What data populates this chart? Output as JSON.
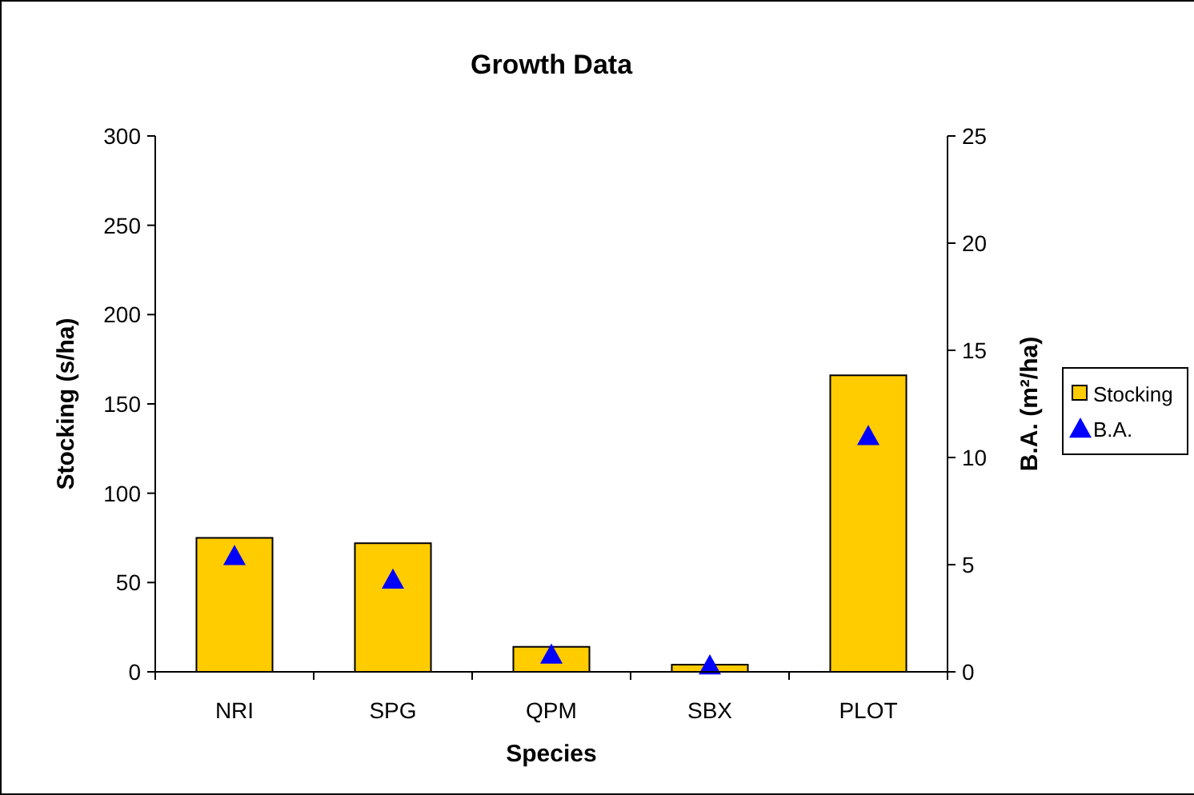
{
  "chart_data": {
    "type": "bar",
    "title": "Growth Data",
    "xlabel": "Species",
    "ylabel": "Stocking (s/ha)",
    "y2label": "B.A. (m²/ha)",
    "categories": [
      "NRI",
      "SPG",
      "QPM",
      "SBX",
      "PLOT"
    ],
    "series": [
      {
        "name": "Stocking",
        "color": "#ffcc00",
        "values": [
          75,
          72,
          14,
          4,
          166
        ]
      },
      {
        "name": "B.A.",
        "type": "scatter",
        "color": "#0000ff",
        "axis": "y2",
        "marker": "triangle",
        "values": [
          5.4,
          4.3,
          0.8,
          0.3,
          11
        ]
      }
    ],
    "ylim": [
      0,
      300
    ],
    "yticks": [
      0,
      50,
      100,
      150,
      200,
      250,
      300
    ],
    "y2lim": [
      0,
      25
    ],
    "y2ticks": [
      0,
      5,
      10,
      15,
      20,
      25
    ],
    "grid": false,
    "legend": "right"
  }
}
